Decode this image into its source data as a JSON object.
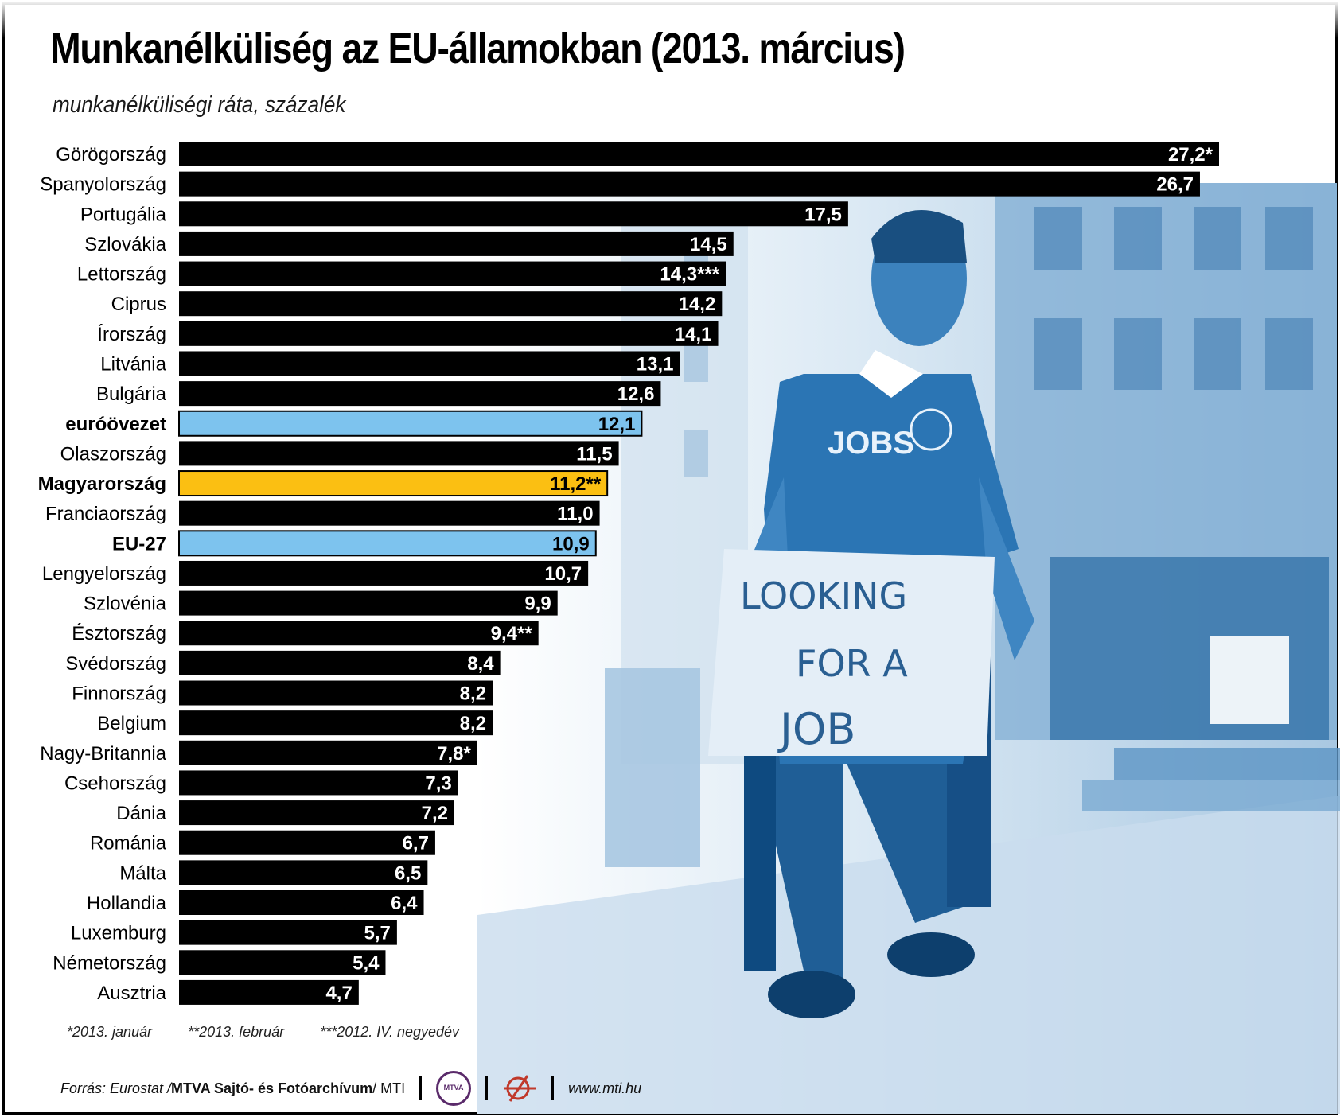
{
  "title": "Munkanélküliség az EU-államokban (2013. március)",
  "subtitle": "munkanélküliségi ráta, százalék",
  "colors": {
    "bar_default": "#000000",
    "bar_highlight_blue": "#7dc3ee",
    "bar_highlight_yellow": "#fbbf12",
    "photo_tint": "#2f7fb8"
  },
  "chart_data": {
    "type": "bar",
    "orientation": "horizontal",
    "categories": [
      "Görögország",
      "Spanyolország",
      "Portugália",
      "Szlovákia",
      "Lettország",
      "Ciprus",
      "Írország",
      "Litvánia",
      "Bulgária",
      "euróövezet",
      "Olaszország",
      "Magyarország",
      "Franciaország",
      "EU-27",
      "Lengyelország",
      "Szlovénia",
      "Észtország",
      "Svédország",
      "Finnország",
      "Belgium",
      "Nagy-Britannia",
      "Csehország",
      "Dánia",
      "Románia",
      "Málta",
      "Hollandia",
      "Luxemburg",
      "Németország",
      "Ausztria"
    ],
    "values": [
      27.2,
      26.7,
      17.5,
      14.5,
      14.3,
      14.2,
      14.1,
      13.1,
      12.6,
      12.1,
      11.5,
      11.2,
      11.0,
      10.9,
      10.7,
      9.9,
      9.4,
      8.4,
      8.2,
      8.2,
      7.8,
      7.3,
      7.2,
      6.7,
      6.5,
      6.4,
      5.7,
      5.4,
      4.7
    ],
    "value_labels": [
      "27,2*",
      "26,7",
      "17,5",
      "14,5",
      "14,3***",
      "14,2",
      "14,1",
      "13,1",
      "12,6",
      "12,1",
      "11,5",
      "11,2**",
      "11,0",
      "10,9",
      "10,7",
      "9,9",
      "9,4**",
      "8,4",
      "8,2",
      "8,2",
      "7,8*",
      "7,3",
      "7,2",
      "6,7",
      "6,5",
      "6,4",
      "5,7",
      "5,4",
      "4,7"
    ],
    "highlights": {
      "euróövezet": "blue",
      "EU-27": "blue",
      "Magyarország": "yellow"
    },
    "bold_categories": [
      "euróövezet",
      "Magyarország",
      "EU-27"
    ],
    "xlim": [
      0,
      27.2
    ],
    "title": "Munkanélküliség az EU-államokban (2013. március)",
    "subtitle": "munkanélküliségi ráta, százalék",
    "xlabel": "",
    "ylabel": ""
  },
  "footnotes": [
    "*2013. január",
    "**2013. február",
    "***2012. IV. negyedév"
  ],
  "source": {
    "prefix": "Forrás: Eurostat / ",
    "bold": "MTVA Sajtó- és Fotóarchívum",
    "suffix": " / MTI",
    "logo_mtva_text": "MTVA",
    "website": "www.mti.hu"
  },
  "photo_sign_text": [
    "LOOKING",
    "FOR A",
    "JOB"
  ],
  "photo_shirt_text": "JOBS"
}
